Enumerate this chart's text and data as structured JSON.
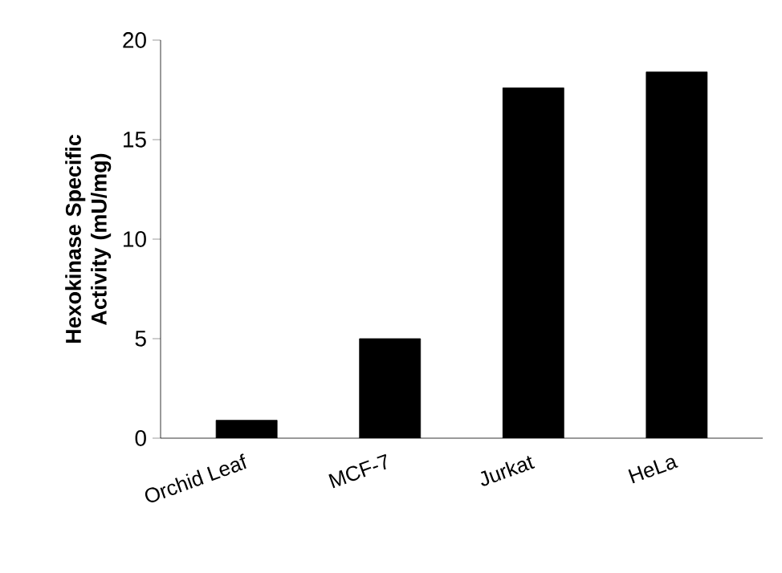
{
  "chart_data": {
    "type": "bar",
    "ylabel": "Hexokinase Specific Activity (mU/mg)",
    "categories": [
      "Orchid Leaf",
      "MCF-7",
      "Jurkat",
      "HeLa"
    ],
    "values": [
      0.9,
      5.0,
      17.6,
      18.4
    ],
    "color": "#000000",
    "ylim": [
      0,
      20
    ],
    "yticks": [
      0,
      5,
      10,
      15,
      20
    ],
    "grid": false
  }
}
